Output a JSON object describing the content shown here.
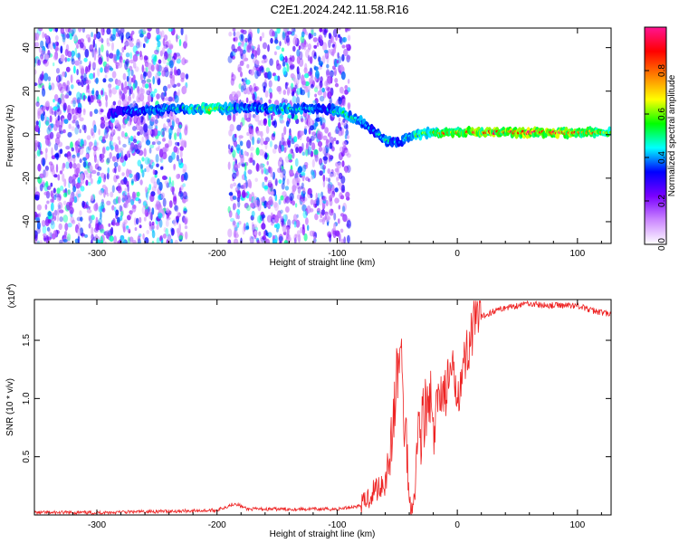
{
  "title": "C2E1.2024.242.11.58.R16",
  "chart_data": [
    {
      "type": "heatmap",
      "xlabel": "Height of straight line (km)",
      "ylabel": "Frequency (Hz)",
      "xlim": [
        -352,
        128
      ],
      "ylim": [
        -50,
        49
      ],
      "xticks": [
        -300,
        -200,
        -100,
        0,
        100
      ],
      "yticks": [
        -40,
        -20,
        0,
        20,
        40
      ],
      "colorbar": {
        "label": "Normalized spectral amplitude",
        "range": [
          0.0,
          1.0
        ],
        "ticks": [
          0.0,
          0.2,
          0.4,
          0.6,
          0.8
        ],
        "colors": [
          "#ffffff",
          "#cc88ff",
          "#7a00ff",
          "#0000ff",
          "#00ffff",
          "#00ff00",
          "#ffff00",
          "#ff7f00",
          "#ff0000",
          "#ff1493"
        ]
      },
      "ridge": [
        {
          "x": -290,
          "f": 10,
          "a": 0.3
        },
        {
          "x": -260,
          "f": 11,
          "a": 0.45
        },
        {
          "x": -230,
          "f": 12,
          "a": 0.5
        },
        {
          "x": -205,
          "f": 12,
          "a": 0.7
        },
        {
          "x": -180,
          "f": 12,
          "a": 0.45
        },
        {
          "x": -140,
          "f": 12,
          "a": 0.55
        },
        {
          "x": -110,
          "f": 12,
          "a": 0.4
        },
        {
          "x": -95,
          "f": 10,
          "a": 0.55
        },
        {
          "x": -80,
          "f": 6,
          "a": 0.5
        },
        {
          "x": -70,
          "f": 2,
          "a": 0.4
        },
        {
          "x": -60,
          "f": -3,
          "a": 0.5
        },
        {
          "x": -50,
          "f": -4,
          "a": 0.45
        },
        {
          "x": -40,
          "f": -1,
          "a": 0.55
        },
        {
          "x": -25,
          "f": 1,
          "a": 0.7
        },
        {
          "x": 0,
          "f": 1,
          "a": 0.85
        },
        {
          "x": 40,
          "f": 1,
          "a": 0.9
        },
        {
          "x": 80,
          "f": 1,
          "a": 0.95
        },
        {
          "x": 128,
          "f": 1,
          "a": 0.75
        }
      ]
    },
    {
      "type": "line",
      "xlabel": "Height of straight line (km)",
      "ylabel": "SNR (10 * v/v)",
      "scale_label": "(x10^4)",
      "scale_base": "(x10",
      "scale_exp": "4",
      "scale_close": ")",
      "xlim": [
        -352,
        128
      ],
      "ylim": [
        0,
        1.85
      ],
      "xticks": [
        -300,
        -200,
        -100,
        0,
        100
      ],
      "yticks": [
        0.5,
        1.0,
        1.5
      ],
      "ytick_labels": [
        "0.5",
        "1.0",
        "1.5"
      ],
      "color": "#ee2222",
      "series": [
        {
          "x": [
            -352,
            -300,
            -250,
            -200,
            -185,
            -175,
            -150,
            -100,
            -80,
            -70,
            -60,
            -55,
            -50,
            -47,
            -45,
            -42,
            -40,
            -37,
            -35,
            -32,
            -30,
            -28,
            -25,
            -22,
            -20,
            -15,
            -10,
            -5,
            0,
            5,
            10,
            15,
            20,
            30,
            40,
            50,
            60,
            70,
            80,
            90,
            100,
            110,
            120,
            128
          ],
          "y": [
            0.02,
            0.02,
            0.03,
            0.04,
            0.1,
            0.05,
            0.05,
            0.05,
            0.08,
            0.2,
            0.3,
            0.6,
            1.2,
            1.45,
            0.9,
            0.6,
            0.1,
            0.08,
            0.3,
            0.8,
            0.7,
            0.9,
            0.85,
            1.0,
            0.6,
            1.1,
            1.05,
            1.2,
            1.1,
            1.25,
            1.5,
            1.65,
            1.7,
            1.75,
            1.78,
            1.8,
            1.82,
            1.8,
            1.8,
            1.8,
            1.8,
            1.76,
            1.74,
            1.72
          ]
        }
      ]
    }
  ]
}
